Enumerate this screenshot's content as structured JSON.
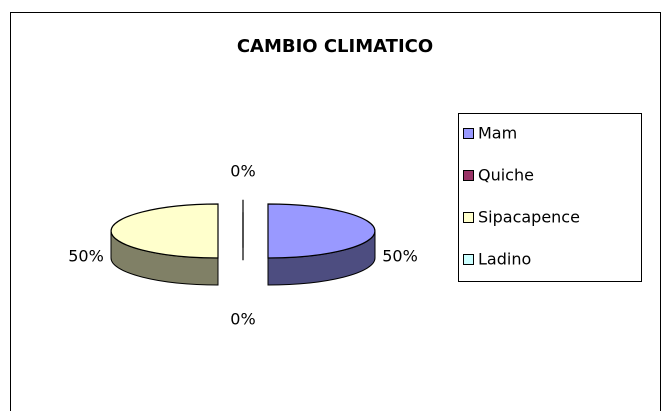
{
  "chart_data": {
    "type": "pie",
    "title": "CAMBIO CLIMATICO",
    "categories": [
      "Mam",
      "Quiche",
      "Sipacapence",
      "Ladino"
    ],
    "values": [
      50,
      0,
      50,
      0
    ],
    "value_labels": [
      "50%",
      "0%",
      "50%",
      "0%"
    ],
    "colors": [
      "#9999ff",
      "#993366",
      "#ffffcc",
      "#ccffff"
    ],
    "legend": "right",
    "three_d": true
  }
}
